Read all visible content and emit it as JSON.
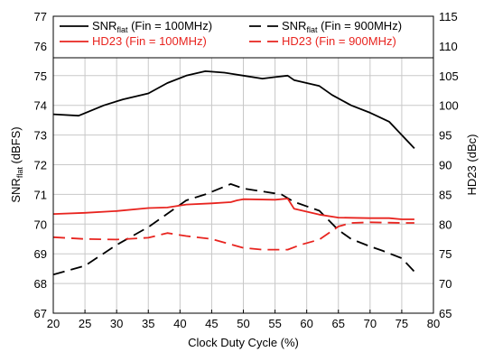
{
  "chart_data": {
    "type": "line",
    "xlabel": "Clock Duty Cycle (%)",
    "ylabel_left": {
      "base": "SNR",
      "sub": "flat",
      "tail": " (dBFS)"
    },
    "ylabel_right": "HD23 (dBc)",
    "xlim": [
      20,
      80
    ],
    "ylim_left": [
      67,
      77
    ],
    "ylim_right": [
      65,
      115
    ],
    "x_ticks": [
      20,
      25,
      30,
      35,
      40,
      45,
      50,
      55,
      60,
      65,
      70,
      75,
      80
    ],
    "y_ticks_left": [
      67,
      68,
      69,
      70,
      71,
      72,
      73,
      74,
      75,
      76,
      77
    ],
    "y_ticks_right": [
      65,
      70,
      75,
      80,
      85,
      90,
      95,
      100,
      105,
      110,
      115
    ],
    "grid": true,
    "legend_position": "top",
    "series": [
      {
        "name": {
          "base": "SNR",
          "sub": "flat",
          "tail": " (Fin = 100MHz)"
        },
        "axis": "left",
        "color": "#000000",
        "dash": "solid",
        "x": [
          20,
          24,
          28,
          31,
          35,
          38,
          41,
          44,
          47,
          50,
          53,
          55,
          57,
          58,
          62,
          64,
          67,
          70,
          73,
          77
        ],
        "y": [
          73.7,
          73.65,
          74.0,
          74.2,
          74.4,
          74.75,
          75.0,
          75.15,
          75.1,
          75.0,
          74.9,
          74.95,
          75.0,
          74.85,
          74.65,
          74.35,
          74.0,
          73.75,
          73.45,
          72.55
        ]
      },
      {
        "name": {
          "base": "SNR",
          "sub": "flat",
          "tail": " (Fin = 900MHz)"
        },
        "axis": "left",
        "color": "#000000",
        "dash": "dashed",
        "x": [
          20,
          25,
          30,
          35,
          41,
          44,
          48,
          50,
          53,
          56,
          58,
          62,
          65,
          67,
          70,
          72,
          75,
          77
        ],
        "y": [
          68.3,
          68.6,
          69.3,
          69.9,
          70.8,
          71.0,
          71.35,
          71.2,
          71.1,
          71.0,
          70.75,
          70.45,
          69.8,
          69.5,
          69.25,
          69.1,
          68.85,
          68.4
        ]
      },
      {
        "name": {
          "base": "HD23",
          "sub": "",
          "tail": " (Fin = 100MHz)"
        },
        "axis": "right",
        "color": "#e8241f",
        "dash": "solid",
        "x": [
          20,
          25,
          30,
          35,
          38,
          41,
          45,
          48,
          49,
          50,
          55,
          57,
          58,
          62,
          65,
          70,
          73,
          75,
          77
        ],
        "y": [
          81.7,
          81.9,
          82.2,
          82.7,
          82.8,
          83.3,
          83.5,
          83.7,
          84.0,
          84.2,
          84.1,
          84.3,
          82.6,
          81.6,
          81.1,
          81.0,
          81.0,
          80.8,
          80.8
        ]
      },
      {
        "name": {
          "base": "HD23",
          "sub": "",
          "tail": " (Fin = 900MHz)"
        },
        "axis": "right",
        "color": "#e8241f",
        "dash": "dashed",
        "x": [
          20,
          25,
          30,
          35,
          38,
          41,
          45,
          50,
          53,
          57,
          59,
          62,
          65,
          67,
          70,
          75,
          77
        ],
        "y": [
          77.8,
          77.5,
          77.4,
          77.7,
          78.5,
          78.0,
          77.5,
          76.0,
          75.7,
          75.7,
          76.5,
          77.4,
          79.6,
          80.2,
          80.3,
          80.2,
          80.2
        ]
      }
    ]
  }
}
